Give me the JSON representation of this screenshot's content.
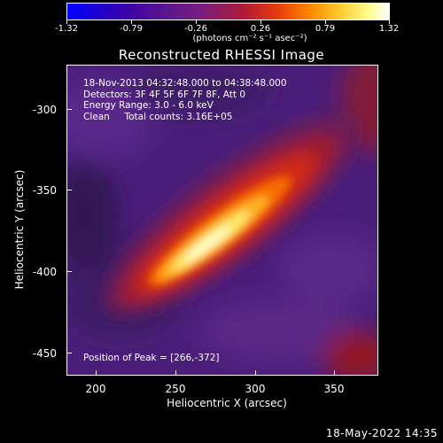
{
  "colorbar": {
    "tick_labels": [
      "-1.32",
      "-0.79",
      "-0.26",
      "0.26",
      "0.79",
      "1.32"
    ],
    "unit_label": "(photons cm⁻² s⁻¹ asec⁻²)",
    "colors": [
      "#0000ff",
      "#4b0082",
      "#7a1e7a",
      "#b81c2a",
      "#ff7a00",
      "#ffff80",
      "#ffffff"
    ]
  },
  "plot": {
    "title": "Reconstructed RHESSI Image",
    "info_lines": [
      "18-Nov-2013 04:32:48.000 to 04:38:48.000",
      "Detectors: 3F 4F 5F 6F 7F 8F, Att 0",
      "Energy Range: 3.0 - 6.0 keV",
      "Clean     Total counts: 3.16E+05"
    ],
    "peak_text": "Position of Peak = [266,-372]",
    "xlabel": "Heliocentric X (arcsec)",
    "ylabel": "Heliocentric Y (arcsec)",
    "x_ticks": [
      "200",
      "250",
      "300",
      "350"
    ],
    "y_ticks": [
      "-300",
      "-350",
      "-400",
      "-450"
    ]
  },
  "footer": {
    "timestamp": "18-May-2022 14:35"
  }
}
